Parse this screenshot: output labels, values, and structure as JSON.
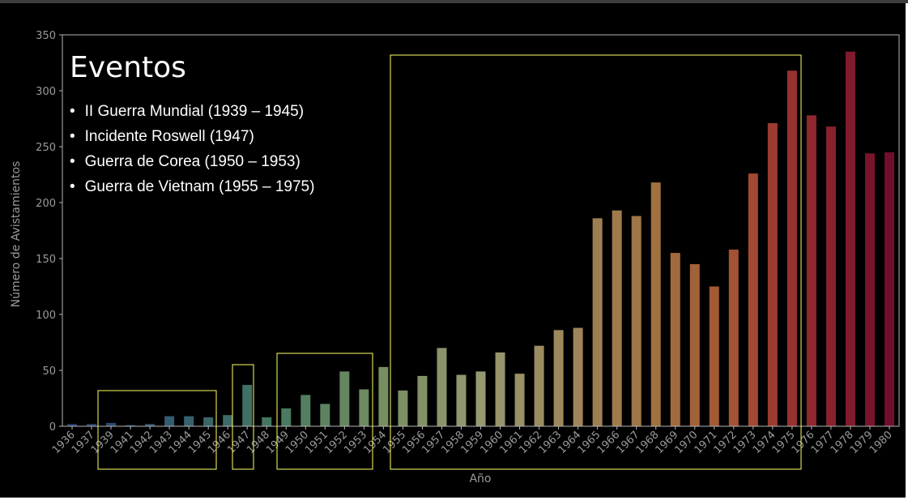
{
  "chart_data": {
    "type": "bar",
    "title": "",
    "xlabel": "Año",
    "ylabel": "Número de Avistamientos",
    "ylim": [
      0,
      350
    ],
    "yticks": [
      0,
      50,
      100,
      150,
      200,
      250,
      300,
      350
    ],
    "grid": false,
    "categories": [
      "1936",
      "1937",
      "1939",
      "1941",
      "1942",
      "1943",
      "1944",
      "1945",
      "1946",
      "1947",
      "1948",
      "1949",
      "1950",
      "1951",
      "1952",
      "1953",
      "1954",
      "1955",
      "1956",
      "1957",
      "1958",
      "1959",
      "1960",
      "1961",
      "1962",
      "1963",
      "1964",
      "1965",
      "1966",
      "1967",
      "1968",
      "1969",
      "1970",
      "1971",
      "1972",
      "1973",
      "1974",
      "1975",
      "1976",
      "1977",
      "1978",
      "1979",
      "1980"
    ],
    "values": [
      2,
      2,
      3,
      1,
      2,
      9,
      9,
      8,
      10,
      37,
      8,
      16,
      28,
      20,
      49,
      33,
      53,
      32,
      45,
      70,
      46,
      49,
      66,
      47,
      72,
      86,
      88,
      186,
      193,
      188,
      218,
      155,
      145,
      125,
      158,
      226,
      271,
      318,
      278,
      268,
      335,
      244,
      245
    ],
    "annotations": {
      "title": "Eventos",
      "items": [
        "II Guerra Mundial (1939 – 1945)",
        "Incidente Roswell (1947)",
        "Guerra de Corea (1950 – 1953)",
        "Guerra de Vietnam (1955 – 1975)"
      ],
      "highlight_color": "#ffff66"
    }
  }
}
